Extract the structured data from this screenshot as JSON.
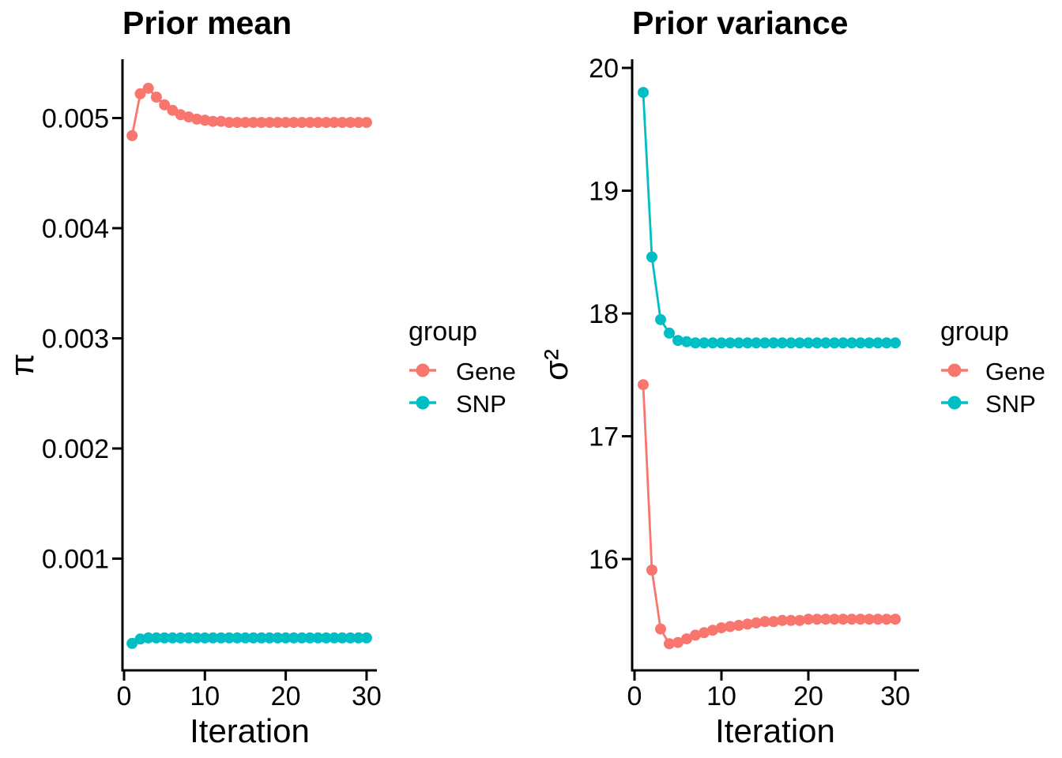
{
  "colors": {
    "gene": "#F8766D",
    "snp": "#00BFC4",
    "axis": "#000000",
    "background": "#FFFFFF"
  },
  "legend": {
    "title": "group",
    "items": [
      {
        "label": "Gene",
        "color": "#F8766D"
      },
      {
        "label": "SNP",
        "color": "#00BFC4"
      }
    ]
  },
  "chart_data": [
    {
      "type": "line",
      "title": "Prior mean",
      "xlabel": "Iteration",
      "ylabel": "π",
      "legend_title": "group",
      "legend_position": "right",
      "grid": false,
      "x": [
        1,
        2,
        3,
        4,
        5,
        6,
        7,
        8,
        9,
        10,
        11,
        12,
        13,
        14,
        15,
        16,
        17,
        18,
        19,
        20,
        21,
        22,
        23,
        24,
        25,
        26,
        27,
        28,
        29,
        30
      ],
      "xticks": [
        0,
        10,
        20,
        30
      ],
      "xtick_labels": [
        "0",
        "10",
        "20",
        "30"
      ],
      "xlim": [
        0,
        31
      ],
      "yticks": [
        0.001,
        0.002,
        0.003,
        0.004,
        0.005
      ],
      "ytick_labels": [
        "0.001",
        "0.002",
        "0.003",
        "0.004",
        "0.005"
      ],
      "ylim": [
        0,
        0.0055
      ],
      "series": [
        {
          "name": "Gene",
          "color": "#F8766D",
          "values": [
            0.00484,
            0.00522,
            0.00527,
            0.00519,
            0.00512,
            0.00507,
            0.00503,
            0.00501,
            0.00499,
            0.00498,
            0.00497,
            0.00497,
            0.00496,
            0.00496,
            0.00496,
            0.00496,
            0.00496,
            0.00496,
            0.00496,
            0.00496,
            0.00496,
            0.00496,
            0.00496,
            0.00496,
            0.00496,
            0.00496,
            0.00496,
            0.00496,
            0.00496,
            0.00496
          ]
        },
        {
          "name": "SNP",
          "color": "#00BFC4",
          "values": [
            0.00023,
            0.00027,
            0.00028,
            0.00028,
            0.00028,
            0.00028,
            0.00028,
            0.00028,
            0.00028,
            0.00028,
            0.00028,
            0.00028,
            0.00028,
            0.00028,
            0.00028,
            0.00028,
            0.00028,
            0.00028,
            0.00028,
            0.00028,
            0.00028,
            0.00028,
            0.00028,
            0.00028,
            0.00028,
            0.00028,
            0.00028,
            0.00028,
            0.00028,
            0.00028
          ]
        }
      ]
    },
    {
      "type": "line",
      "title": "Prior variance",
      "xlabel": "Iteration",
      "ylabel": "σ²",
      "legend_title": "group",
      "legend_position": "right",
      "grid": false,
      "x": [
        1,
        2,
        3,
        4,
        5,
        6,
        7,
        8,
        9,
        10,
        11,
        12,
        13,
        14,
        15,
        16,
        17,
        18,
        19,
        20,
        21,
        22,
        23,
        24,
        25,
        26,
        27,
        28,
        29,
        30
      ],
      "xticks": [
        0,
        10,
        20,
        30
      ],
      "xtick_labels": [
        "0",
        "10",
        "20",
        "30"
      ],
      "xlim": [
        0,
        31
      ],
      "yticks": [
        16,
        17,
        18,
        19,
        20
      ],
      "ytick_labels": [
        "16",
        "17",
        "18",
        "19",
        "20"
      ],
      "ylim": [
        15.1,
        20.05
      ],
      "series": [
        {
          "name": "Gene",
          "color": "#F8766D",
          "values": [
            17.42,
            15.91,
            15.43,
            15.31,
            15.32,
            15.35,
            15.38,
            15.4,
            15.42,
            15.44,
            15.45,
            15.46,
            15.47,
            15.48,
            15.49,
            15.49,
            15.5,
            15.5,
            15.5,
            15.51,
            15.51,
            15.51,
            15.51,
            15.51,
            15.51,
            15.51,
            15.51,
            15.51,
            15.51,
            15.51
          ]
        },
        {
          "name": "SNP",
          "color": "#00BFC4",
          "values": [
            19.8,
            18.46,
            17.95,
            17.84,
            17.78,
            17.77,
            17.76,
            17.76,
            17.76,
            17.76,
            17.76,
            17.76,
            17.76,
            17.76,
            17.76,
            17.76,
            17.76,
            17.76,
            17.76,
            17.76,
            17.76,
            17.76,
            17.76,
            17.76,
            17.76,
            17.76,
            17.76,
            17.76,
            17.76,
            17.76
          ]
        }
      ]
    }
  ]
}
